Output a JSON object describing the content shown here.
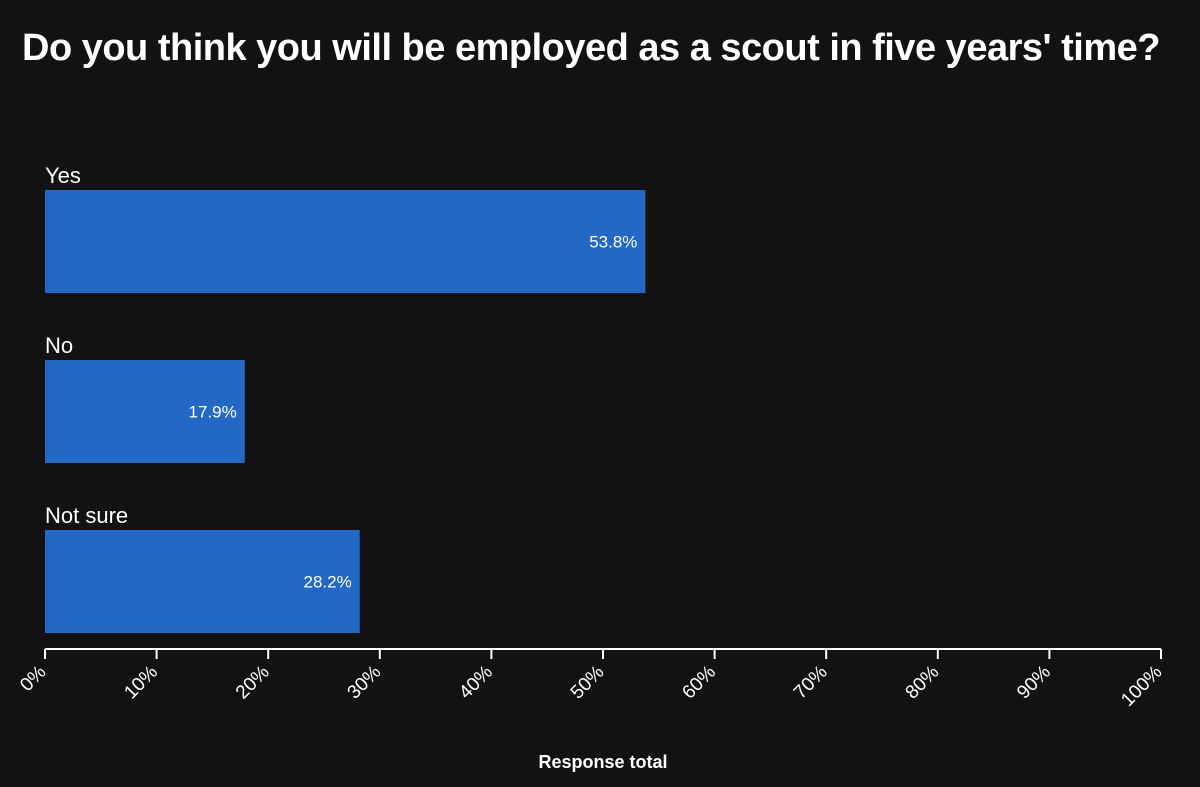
{
  "colors": {
    "background": "#121212",
    "bar": "#2468c6",
    "text": "#ffffff",
    "axis": "#ffffff"
  },
  "chart_data": {
    "type": "bar",
    "orientation": "horizontal",
    "title": "Do you think you will be employed as a scout in five years' time?",
    "xlabel": "Response total",
    "ylabel": "",
    "categories": [
      "Yes",
      "No",
      "Not sure"
    ],
    "values": [
      53.8,
      17.9,
      28.2
    ],
    "value_labels": [
      "53.8%",
      "17.9%",
      "28.2%"
    ],
    "xlim": [
      0,
      100
    ],
    "ticks": [
      "0%",
      "10%",
      "20%",
      "30%",
      "40%",
      "50%",
      "60%",
      "70%",
      "80%",
      "90%",
      "100%"
    ],
    "grid": false,
    "legend": "none"
  }
}
